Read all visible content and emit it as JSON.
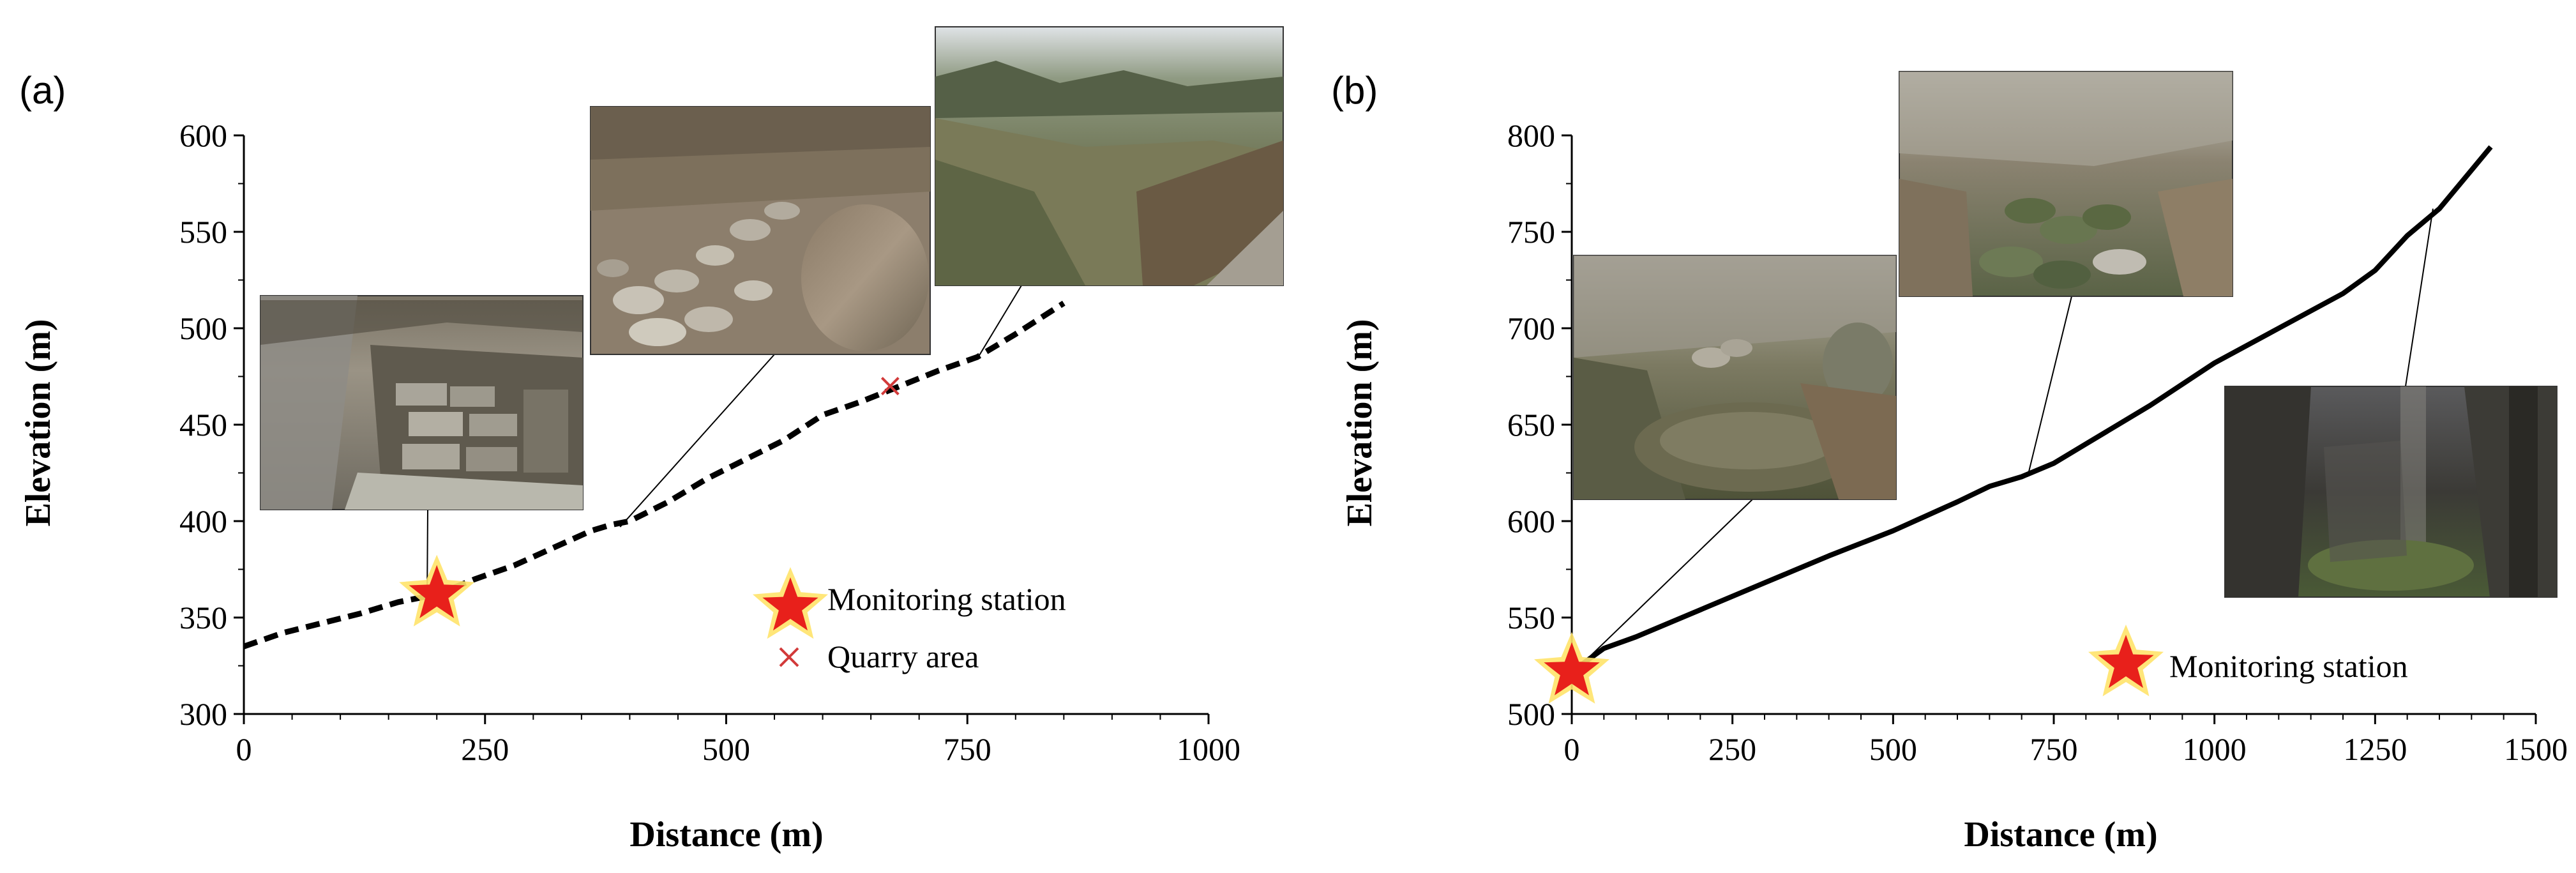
{
  "chart_data": [
    {
      "panel": "(a)",
      "type": "line",
      "xlabel": "Distance (m)",
      "ylabel": "Elevation (m)",
      "xlim": [
        0,
        1000
      ],
      "ylim": [
        300,
        600
      ],
      "x_ticks": [
        "0",
        "250",
        "500",
        "750",
        "1000"
      ],
      "y_ticks": [
        "300",
        "350",
        "400",
        "450",
        "500",
        "550",
        "600"
      ],
      "line_style": "dashed",
      "series": [
        {
          "x": [
            0,
            40,
            80,
            120,
            160,
            200,
            240,
            280,
            320,
            360,
            380,
            400,
            440,
            480,
            520,
            560,
            600,
            640,
            680,
            720,
            760,
            800,
            850
          ],
          "y": [
            335,
            342,
            347,
            352,
            358,
            362,
            370,
            377,
            386,
            395,
            398,
            400,
            410,
            422,
            432,
            442,
            455,
            462,
            470,
            478,
            485,
            497,
            513
          ]
        }
      ],
      "legend": [
        {
          "label": "Monitoring station",
          "marker": "star",
          "color": "#e8201b"
        },
        {
          "label": "Quarry area",
          "marker": "x",
          "color": "#d23a3a"
        }
      ],
      "legend_position": "bottom-right",
      "monitoring_station": {
        "x": 200,
        "y": 362
      },
      "quarry_area": {
        "x": 670,
        "y": 470
      },
      "photo_callouts": [
        {
          "x": 190,
          "y": 362,
          "photo": "stone-lined-channel"
        },
        {
          "x": 390,
          "y": 397,
          "photo": "boulder-streambed"
        },
        {
          "x": 760,
          "y": 484,
          "photo": "quarry-hillside"
        }
      ]
    },
    {
      "panel": "(b)",
      "type": "line",
      "xlabel": "Distance (m)",
      "ylabel": "Elevation (m)",
      "xlim": [
        0,
        1500
      ],
      "ylim": [
        500,
        800
      ],
      "x_ticks": [
        "0",
        "250",
        "500",
        "750",
        "1000",
        "1250",
        "1500"
      ],
      "y_ticks": [
        "500",
        "550",
        "600",
        "650",
        "700",
        "750",
        "800"
      ],
      "line_style": "solid",
      "series": [
        {
          "x": [
            0,
            50,
            100,
            150,
            200,
            300,
            400,
            500,
            600,
            650,
            700,
            750,
            800,
            900,
            1000,
            1100,
            1200,
            1250,
            1300,
            1350,
            1400,
            1430
          ],
          "y": [
            522,
            534,
            540,
            547,
            554,
            568,
            582,
            595,
            610,
            618,
            623,
            630,
            640,
            660,
            682,
            700,
            718,
            730,
            748,
            762,
            782,
            794
          ]
        }
      ],
      "legend": [
        {
          "label": "Monitoring station",
          "marker": "star",
          "color": "#e8201b"
        }
      ],
      "legend_position": "bottom-right",
      "monitoring_station": {
        "x": 0,
        "y": 522
      },
      "photo_callouts": [
        {
          "x": 10,
          "y": 524,
          "photo": "pool-stream"
        },
        {
          "x": 710,
          "y": 624,
          "photo": "mossy-boulders"
        },
        {
          "x": 1340,
          "y": 762,
          "photo": "dark-forest-gully"
        }
      ]
    }
  ],
  "panel_labels": [
    "(a)",
    "(b)"
  ],
  "colors": {
    "star_fill": "#e8201b",
    "star_glow": "#ffe36a",
    "quarry_x": "#d23a3a",
    "line": "#000000"
  }
}
